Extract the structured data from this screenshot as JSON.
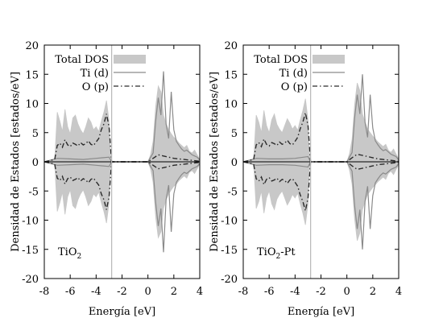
{
  "chart_data": [
    {
      "type": "area",
      "panel_label": "TiO",
      "panel_label_sub": "2",
      "panel_label_suffix": "",
      "xlabel": "Energía [eV]",
      "ylabel": "Densidad de Estados [estados/eV]",
      "xlim": [
        -8,
        4
      ],
      "ylim": [
        -20,
        20
      ],
      "xticks": [
        "-8",
        "-6",
        "-4",
        "-2",
        "0",
        "2",
        "4"
      ],
      "yticks": [
        "-20",
        "-15",
        "-10",
        "-5",
        "0",
        "5",
        "10",
        "15",
        "20"
      ],
      "fermi_level": -2.8,
      "grid": false,
      "legend_position": "top-left",
      "series": [
        {
          "name": "Total DOS",
          "style": "filled-light-gray",
          "x": [
            -8,
            -7.2,
            -7.0,
            -6.8,
            -6.6,
            -6.4,
            -6.2,
            -6.0,
            -5.8,
            -5.6,
            -5.4,
            -5.2,
            -5.0,
            -4.8,
            -4.6,
            -4.4,
            -4.2,
            -4.0,
            -3.8,
            -3.6,
            -3.4,
            -3.2,
            -3.0,
            -2.9,
            -2.8,
            0.0,
            0.2,
            0.4,
            0.6,
            0.8,
            1.0,
            1.2,
            1.4,
            1.6,
            1.8,
            2.0,
            2.2,
            2.4,
            2.6,
            2.8,
            3.0,
            3.2,
            3.4,
            3.6,
            3.8,
            4.0
          ],
          "values": [
            0,
            0.3,
            8.5,
            7.0,
            5.2,
            9.0,
            6.0,
            4.8,
            7.5,
            8.0,
            6.5,
            5.5,
            4.8,
            6.0,
            7.5,
            6.8,
            5.5,
            6.0,
            5.2,
            7.0,
            8.5,
            10.5,
            7.0,
            1.5,
            0,
            0,
            1.2,
            3.5,
            9.5,
            13.0,
            12.0,
            8.0,
            6.5,
            5.5,
            4.8,
            4.2,
            3.8,
            3.2,
            2.8,
            2.4,
            2.8,
            1.8,
            1.5,
            2.0,
            1.2,
            0.4
          ]
        },
        {
          "name": "Ti (d)",
          "style": "solid-gray",
          "x": [
            -8,
            -7.0,
            -6.0,
            -5.0,
            -4.0,
            -3.0,
            -2.8,
            0.0,
            0.4,
            0.6,
            0.8,
            1.0,
            1.2,
            1.4,
            1.6,
            1.8,
            2.0,
            2.2,
            2.4,
            2.6,
            2.8,
            3.0,
            3.4,
            3.8,
            4.0
          ],
          "values": [
            0,
            0.6,
            0.5,
            0.4,
            0.6,
            0.8,
            0,
            0,
            1.5,
            7.0,
            11.0,
            8.0,
            15.5,
            6.5,
            4.0,
            12.0,
            5.5,
            3.5,
            2.8,
            2.2,
            1.8,
            2.0,
            1.2,
            0.8,
            0.3
          ]
        },
        {
          "name": "O (p)",
          "style": "dash-dot-dark",
          "x": [
            -8,
            -7.2,
            -7.0,
            -6.8,
            -6.6,
            -6.4,
            -6.2,
            -6.0,
            -5.8,
            -5.6,
            -5.4,
            -5.2,
            -5.0,
            -4.8,
            -4.6,
            -4.4,
            -4.2,
            -4.0,
            -3.8,
            -3.6,
            -3.4,
            -3.2,
            -3.0,
            -2.8,
            0.0,
            0.4,
            0.8,
            1.2,
            1.6,
            2.0,
            2.4,
            2.8,
            3.2,
            3.6,
            4.0
          ],
          "values": [
            0,
            0.4,
            2.8,
            3.2,
            2.5,
            3.8,
            2.9,
            2.6,
            3.2,
            3.0,
            2.7,
            3.3,
            2.9,
            3.1,
            3.6,
            3.0,
            2.8,
            3.4,
            4.0,
            5.5,
            6.5,
            8.2,
            6.0,
            0,
            0,
            0.6,
            1.2,
            1.0,
            0.8,
            0.6,
            0.5,
            0.4,
            0.3,
            0.2,
            0.1
          ]
        }
      ]
    },
    {
      "type": "area",
      "panel_label": "TiO",
      "panel_label_sub": "2",
      "panel_label_suffix": "-Pt",
      "xlabel": "Energía [eV]",
      "ylabel": "Densidad de Estados [estados/eV]",
      "xlim": [
        -8,
        4
      ],
      "ylim": [
        -20,
        20
      ],
      "xticks": [
        "-8",
        "-6",
        "-4",
        "-2",
        "0",
        "2",
        "4"
      ],
      "yticks": [
        "-20",
        "-15",
        "-10",
        "-5",
        "0",
        "5",
        "10",
        "15",
        "20"
      ],
      "fermi_level": -2.8,
      "grid": false,
      "legend_position": "top-left",
      "series": [
        {
          "name": "Total DOS",
          "style": "filled-light-gray",
          "x": [
            -8,
            -7.2,
            -7.0,
            -6.8,
            -6.6,
            -6.4,
            -6.2,
            -6.0,
            -5.8,
            -5.6,
            -5.4,
            -5.2,
            -5.0,
            -4.8,
            -4.6,
            -4.4,
            -4.2,
            -4.0,
            -3.8,
            -3.6,
            -3.4,
            -3.2,
            -3.0,
            -2.9,
            -2.8,
            0.0,
            0.2,
            0.4,
            0.6,
            0.8,
            1.0,
            1.2,
            1.4,
            1.6,
            1.8,
            2.0,
            2.2,
            2.4,
            2.6,
            2.8,
            3.0,
            3.2,
            3.4,
            3.6,
            3.8,
            4.0
          ],
          "values": [
            0,
            0.3,
            8.0,
            6.8,
            5.0,
            8.8,
            6.2,
            5.0,
            7.2,
            8.2,
            6.4,
            5.6,
            5.0,
            6.2,
            7.4,
            6.6,
            5.6,
            6.2,
            5.4,
            7.2,
            8.8,
            10.8,
            7.2,
            1.6,
            0,
            0,
            1.4,
            3.8,
            9.8,
            13.5,
            12.2,
            8.2,
            6.8,
            5.6,
            5.0,
            4.4,
            3.9,
            3.4,
            3.0,
            2.6,
            3.0,
            2.0,
            1.6,
            2.2,
            1.3,
            0.5
          ]
        },
        {
          "name": "Ti (d)",
          "style": "solid-gray",
          "x": [
            -8,
            -7.0,
            -6.0,
            -5.0,
            -4.0,
            -3.0,
            -2.8,
            0.0,
            0.4,
            0.6,
            0.8,
            1.0,
            1.2,
            1.4,
            1.6,
            1.8,
            2.0,
            2.2,
            2.4,
            2.6,
            2.8,
            3.0,
            3.4,
            3.8,
            4.0
          ],
          "values": [
            0,
            0.6,
            0.5,
            0.5,
            0.6,
            0.9,
            0,
            0,
            1.6,
            7.5,
            11.5,
            8.2,
            15.0,
            6.8,
            4.2,
            11.5,
            5.8,
            3.6,
            2.9,
            2.3,
            1.9,
            2.1,
            1.3,
            0.9,
            0.3
          ]
        },
        {
          "name": "O (p)",
          "style": "dash-dot-dark",
          "x": [
            -8,
            -7.2,
            -7.0,
            -6.8,
            -6.6,
            -6.4,
            -6.2,
            -6.0,
            -5.8,
            -5.6,
            -5.4,
            -5.2,
            -5.0,
            -4.8,
            -4.6,
            -4.4,
            -4.2,
            -4.0,
            -3.8,
            -3.6,
            -3.4,
            -3.2,
            -3.0,
            -2.8,
            0.0,
            0.4,
            0.8,
            1.2,
            1.6,
            2.0,
            2.4,
            2.8,
            3.2,
            3.6,
            4.0
          ],
          "values": [
            0,
            0.4,
            2.9,
            3.3,
            2.6,
            3.9,
            3.0,
            2.7,
            3.3,
            3.1,
            2.8,
            3.4,
            3.0,
            3.2,
            3.7,
            3.1,
            2.9,
            3.5,
            4.2,
            5.7,
            6.8,
            8.4,
            6.2,
            0,
            0,
            0.7,
            1.3,
            1.1,
            0.9,
            0.7,
            0.5,
            0.4,
            0.3,
            0.2,
            0.1
          ]
        }
      ]
    }
  ],
  "colors": {
    "total_fill": "#c8c8c8",
    "ti_line": "#8a8a8a",
    "o_line": "#2a2a2a",
    "fermi_line": "#b8b8b8",
    "axis": "#000000"
  }
}
